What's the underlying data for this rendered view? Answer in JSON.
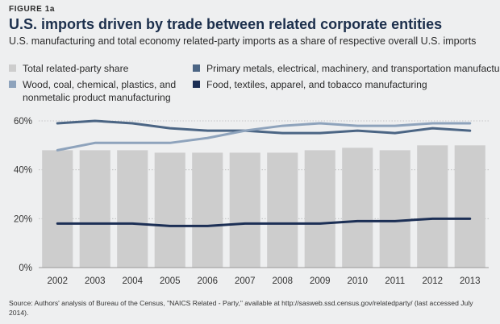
{
  "figure_label": "FIGURE 1a",
  "title": "U.S. imports driven by trade between related corporate entities",
  "subtitle": "U.S. manufacturing and total economy related-party imports as a share of respective overall U.S. imports",
  "legend": [
    {
      "label": "Total related-party share",
      "color": "#cdcdcd",
      "shape": "square"
    },
    {
      "label": "Primary metals, electrical, machinery, and transportation manufacturing",
      "color": "#4b6584",
      "shape": "square"
    },
    {
      "label": "Wood, coal, chemical, plastics, and nonmetalic product manufacturing",
      "color": "#8ea3bc",
      "shape": "square"
    },
    {
      "label": "Food, textiles, apparel, and tobacco manufacturing",
      "color": "#1c2f55",
      "shape": "square"
    }
  ],
  "source": "Source: Authors' analysis of Bureau of the Census, \"NAICS Related - Party,\" available at http://sasweb.ssd.census.gov/relatedparty/ (last accessed July 2014).",
  "chart_data": {
    "type": "bar+line",
    "categories": [
      "2002",
      "2003",
      "2004",
      "2005",
      "2006",
      "2007",
      "2008",
      "2009",
      "2010",
      "2011",
      "2012",
      "2013"
    ],
    "ylim": [
      0,
      60
    ],
    "yticks": [
      0,
      20,
      40,
      60
    ],
    "ytick_labels": [
      "0%",
      "20%",
      "40%",
      "60%"
    ],
    "grid": true,
    "legend_position": "top",
    "bars": {
      "name": "Total related-party share",
      "color": "#cdcdcd",
      "values": [
        48,
        48,
        48,
        47,
        47,
        47,
        47,
        48,
        49,
        48,
        50,
        50
      ]
    },
    "series": [
      {
        "name": "Primary metals, electrical, machinery, and transportation manufacturing",
        "color": "#4b6584",
        "values": [
          59,
          60,
          59,
          57,
          56,
          56,
          55,
          55,
          56,
          55,
          57,
          56
        ]
      },
      {
        "name": "Wood, coal, chemical, plastics, and nonmetalic product manufacturing",
        "color": "#8ea3bc",
        "values": [
          48,
          51,
          51,
          51,
          53,
          56,
          58,
          59,
          58,
          58,
          59,
          59
        ]
      },
      {
        "name": "Food, textiles, apparel, and tobacco manufacturing",
        "color": "#1c2f55",
        "values": [
          18,
          18,
          18,
          17,
          17,
          18,
          18,
          18,
          19,
          19,
          20,
          20
        ]
      }
    ]
  }
}
